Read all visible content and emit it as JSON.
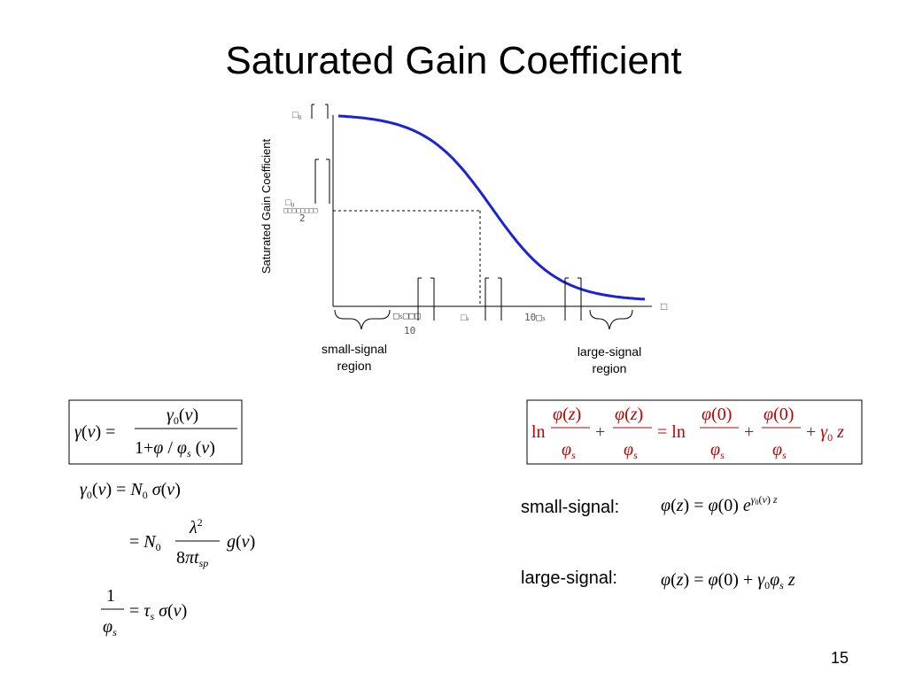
{
  "slide": {
    "title": "Saturated Gain Coefficient",
    "page_number": "15"
  },
  "chart_data": {
    "type": "line",
    "ylabel": "Saturated Gain Coefficient",
    "y_axis_label_top": "γ0",
    "y_axis_label_mid": "γ0",
    "y_axis_label_mid_denominator": "2",
    "x_tick_labels": [
      "φs/10",
      "φs",
      "10φs"
    ],
    "x_axis_label": "φ",
    "region_labels": {
      "small": [
        "small-signal",
        "region"
      ],
      "large": [
        "large-signal",
        "region"
      ]
    },
    "series": [
      {
        "x_log10": [
          -2,
          -1.5,
          -1,
          -0.5,
          0,
          0.5,
          1,
          1.5,
          2
        ],
        "y": [
          0.99,
          0.97,
          0.91,
          0.76,
          0.5,
          0.24,
          0.09,
          0.03,
          0.01
        ]
      }
    ],
    "dashed_marker": {
      "x": "φs",
      "y": "γ0/2"
    }
  },
  "equations": {
    "box1": {
      "lhs": "γ(ν) =",
      "num": "γ0(ν)",
      "den": "1+φ / φs(ν)"
    },
    "gamma0_line1": "γ0(ν) = N0 σ(ν)",
    "gamma0_line2_prefix": "= N0",
    "gamma0_line2_num": "λ²",
    "gamma0_line2_den": "8πtsp",
    "gamma0_line2_suffix": "g(ν)",
    "tau_num": "1",
    "tau_den": "φs",
    "tau_rhs": "= τs σ(ν)",
    "box2": {
      "text": "ln φ(z)/φs + φ(z)/φs = ln φ(0)/φs + φ(0)/φs + γ0 z"
    },
    "small_signal_label": "small-signal:",
    "small_signal_eq": "φ(z) = φ(0) e^(γ0(ν) z)",
    "large_signal_label": "large-signal:",
    "large_signal_eq": "φ(z) = φ(0) + γ0 φs z"
  },
  "colors": {
    "curve": "#1a23d6",
    "equation_red": "#c00000"
  }
}
